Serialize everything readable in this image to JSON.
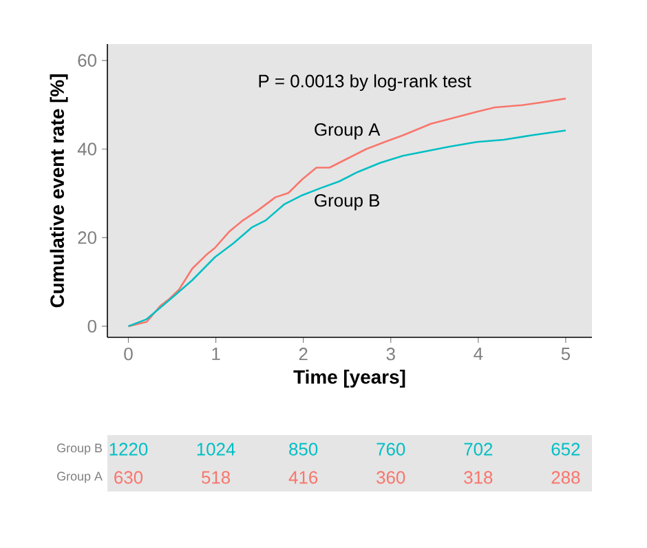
{
  "chart_data": [
    {
      "type": "line",
      "xlabel": "Time [years]",
      "ylabel": "Cumulative event rate [%]",
      "annotations": [
        "P  =  0.0013 by log-rank test"
      ],
      "xlim": [
        -0.24,
        5.3
      ],
      "ylim": [
        -2.5,
        63.7
      ],
      "xticks": [
        0,
        1,
        2,
        3,
        4,
        5
      ],
      "yticks": [
        0,
        20,
        40,
        60
      ],
      "grid": false,
      "legend": false,
      "series": [
        {
          "name": "Group A",
          "color": "#f8766d",
          "x": [
            0,
            0.21,
            0.37,
            0.47,
            0.58,
            0.73,
            0.89,
            0.99,
            1.15,
            1.31,
            1.47,
            1.68,
            1.83,
            1.99,
            2.15,
            2.3,
            2.51,
            2.72,
            2.93,
            3.14,
            3.46,
            3.77,
            3.98,
            4.19,
            4.5,
            4.71,
            5.0
          ],
          "values": [
            0,
            1.0,
            4.7,
            6.2,
            8.3,
            13.0,
            16.1,
            17.7,
            21.3,
            23.9,
            26.0,
            29.1,
            30.1,
            33.2,
            35.8,
            35.8,
            37.9,
            40.0,
            41.6,
            43.1,
            45.7,
            47.3,
            48.4,
            49.4,
            49.9,
            50.5,
            51.4
          ]
        },
        {
          "name": "Group B",
          "color": "#00bfc4",
          "x": [
            0,
            0.21,
            0.52,
            0.73,
            0.99,
            1.2,
            1.41,
            1.57,
            1.78,
            1.99,
            2.2,
            2.41,
            2.62,
            2.88,
            3.14,
            3.4,
            3.66,
            3.98,
            4.29,
            4.61,
            5.0
          ],
          "values": [
            0,
            1.6,
            6.8,
            10.4,
            15.6,
            18.7,
            22.3,
            23.9,
            27.5,
            29.6,
            31.2,
            32.7,
            34.8,
            36.9,
            38.5,
            39.5,
            40.5,
            41.6,
            42.1,
            43.1,
            44.2
          ]
        }
      ]
    },
    {
      "type": "heatmap",
      "categories": [
        "0",
        "1",
        "2",
        "3",
        "4",
        "5"
      ],
      "tick_labels": "y",
      "y_categories": [
        "Group B",
        "Group A"
      ],
      "cells": [
        [
          1220,
          1024,
          850,
          760,
          702,
          652
        ],
        [
          630,
          518,
          416,
          360,
          318,
          288
        ]
      ],
      "colors": [
        "#00bfc4",
        "#f8766d"
      ],
      "data_labels": true
    }
  ]
}
